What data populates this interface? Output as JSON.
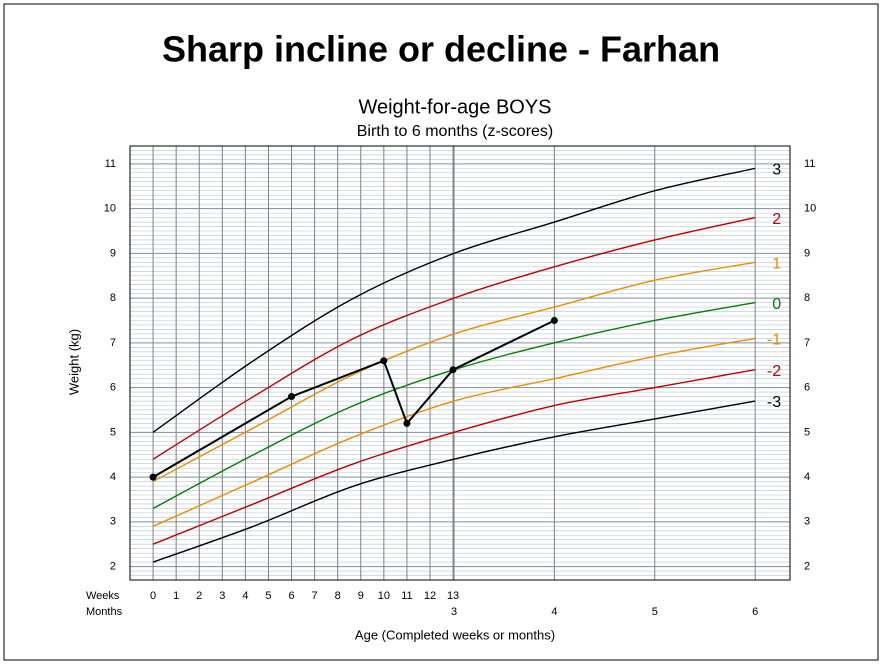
{
  "chart_data": {
    "type": "line",
    "page_title": "Sharp incline or decline - Farhan",
    "title": "Weight-for-age BOYS",
    "subtitle": "Birth to 6 months (z-scores)",
    "xlabel": "Age (Completed weeks or months)",
    "ylabel": "Weight  (kg)",
    "xrow_labels": [
      "Weeks",
      "Months"
    ],
    "xlim": [
      -1,
      27.6
    ],
    "ylim": [
      1.7,
      11.4
    ],
    "xticks": [
      0,
      1,
      2,
      3,
      4,
      5,
      6,
      7,
      8,
      9,
      10,
      11,
      12,
      13
    ],
    "xticks_months": [
      {
        "value": 13.04,
        "label": "3"
      },
      {
        "value": 17.39,
        "label": "4"
      },
      {
        "value": 21.74,
        "label": "5"
      },
      {
        "value": 26.09,
        "label": "6"
      }
    ],
    "yticks": [
      2,
      3,
      4,
      5,
      6,
      7,
      8,
      9,
      10,
      11
    ],
    "grid": true,
    "series": [
      {
        "name": "3",
        "color": "#000000",
        "x": [
          0,
          4.35,
          8.7,
          13.04,
          17.39,
          21.74,
          26.09
        ],
        "values": [
          5.0,
          6.6,
          8.0,
          9.0,
          9.7,
          10.4,
          10.9
        ]
      },
      {
        "name": "2",
        "color": "#c00000",
        "x": [
          0,
          4.35,
          8.7,
          13.04,
          17.39,
          21.74,
          26.09
        ],
        "values": [
          4.4,
          5.8,
          7.1,
          8.0,
          8.7,
          9.3,
          9.8
        ]
      },
      {
        "name": "1",
        "color": "#f08c00",
        "x": [
          0,
          4.35,
          8.7,
          13.04,
          17.39,
          21.74,
          26.09
        ],
        "values": [
          3.9,
          5.1,
          6.3,
          7.2,
          7.8,
          8.4,
          8.8
        ]
      },
      {
        "name": "0",
        "color": "#008000",
        "x": [
          0,
          4.35,
          8.7,
          13.04,
          17.39,
          21.74,
          26.09
        ],
        "values": [
          3.3,
          4.5,
          5.6,
          6.4,
          7.0,
          7.5,
          7.9
        ]
      },
      {
        "name": "-1",
        "color": "#f08c00",
        "x": [
          0,
          4.35,
          8.7,
          13.04,
          17.39,
          21.74,
          26.09
        ],
        "values": [
          2.9,
          3.9,
          4.9,
          5.7,
          6.2,
          6.7,
          7.1
        ]
      },
      {
        "name": "-2",
        "color": "#c00000",
        "x": [
          0,
          4.35,
          8.7,
          13.04,
          17.39,
          21.74,
          26.09
        ],
        "values": [
          2.5,
          3.4,
          4.3,
          5.0,
          5.6,
          6.0,
          6.4
        ]
      },
      {
        "name": "-3",
        "color": "#000000",
        "x": [
          0,
          4.35,
          8.7,
          13.04,
          17.39,
          21.74,
          26.09
        ],
        "values": [
          2.1,
          2.9,
          3.8,
          4.4,
          4.9,
          5.3,
          5.7
        ]
      },
      {
        "name": "Farhan",
        "color": "#000000",
        "x": [
          0,
          6,
          10,
          11,
          13,
          17.39
        ],
        "values": [
          4.0,
          5.8,
          6.6,
          5.2,
          6.4,
          7.5
        ]
      }
    ]
  }
}
